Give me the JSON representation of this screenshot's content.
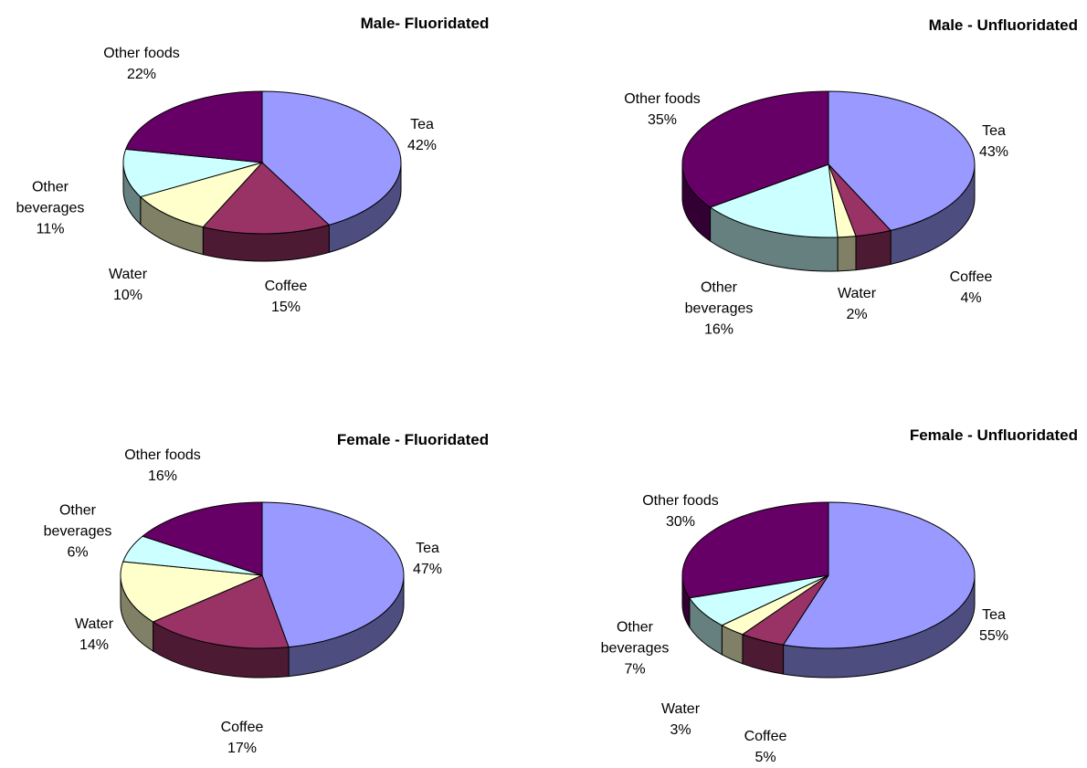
{
  "chart_data": [
    {
      "type": "pie",
      "title": "Male- Fluoridated",
      "categories": [
        "Tea",
        "Coffee",
        "Water",
        "Other beverages",
        "Other foods"
      ],
      "values": [
        42,
        15,
        10,
        11,
        22
      ],
      "value_labels": [
        "42%",
        "15%",
        "10%",
        "11%",
        "22%"
      ],
      "colors": [
        "#9999ff",
        "#993366",
        "#ffffcc",
        "#ccffff",
        "#660066"
      ]
    },
    {
      "type": "pie",
      "title": "Male - Unfluoridated",
      "categories": [
        "Tea",
        "Coffee",
        "Water",
        "Other beverages",
        "Other foods"
      ],
      "values": [
        43,
        4,
        2,
        16,
        35
      ],
      "value_labels": [
        "43%",
        "4%",
        "2%",
        "16%",
        "35%"
      ],
      "colors": [
        "#9999ff",
        "#993366",
        "#ffffcc",
        "#ccffff",
        "#660066"
      ]
    },
    {
      "type": "pie",
      "title": "Female - Fluoridated",
      "categories": [
        "Tea",
        "Coffee",
        "Water",
        "Other beverages",
        "Other foods"
      ],
      "values": [
        47,
        17,
        14,
        6,
        16
      ],
      "value_labels": [
        "47%",
        "17%",
        "14%",
        "6%",
        "16%"
      ],
      "colors": [
        "#9999ff",
        "#993366",
        "#ffffcc",
        "#ccffff",
        "#660066"
      ]
    },
    {
      "type": "pie",
      "title": "Female - Unfluoridated",
      "categories": [
        "Tea",
        "Coffee",
        "Water",
        "Other beverages",
        "Other foods"
      ],
      "values": [
        55,
        5,
        3,
        7,
        30
      ],
      "value_labels": [
        "55%",
        "5%",
        "3%",
        "7%",
        "30%"
      ],
      "colors": [
        "#9999ff",
        "#993366",
        "#ffffcc",
        "#ccffff",
        "#660066"
      ]
    }
  ]
}
